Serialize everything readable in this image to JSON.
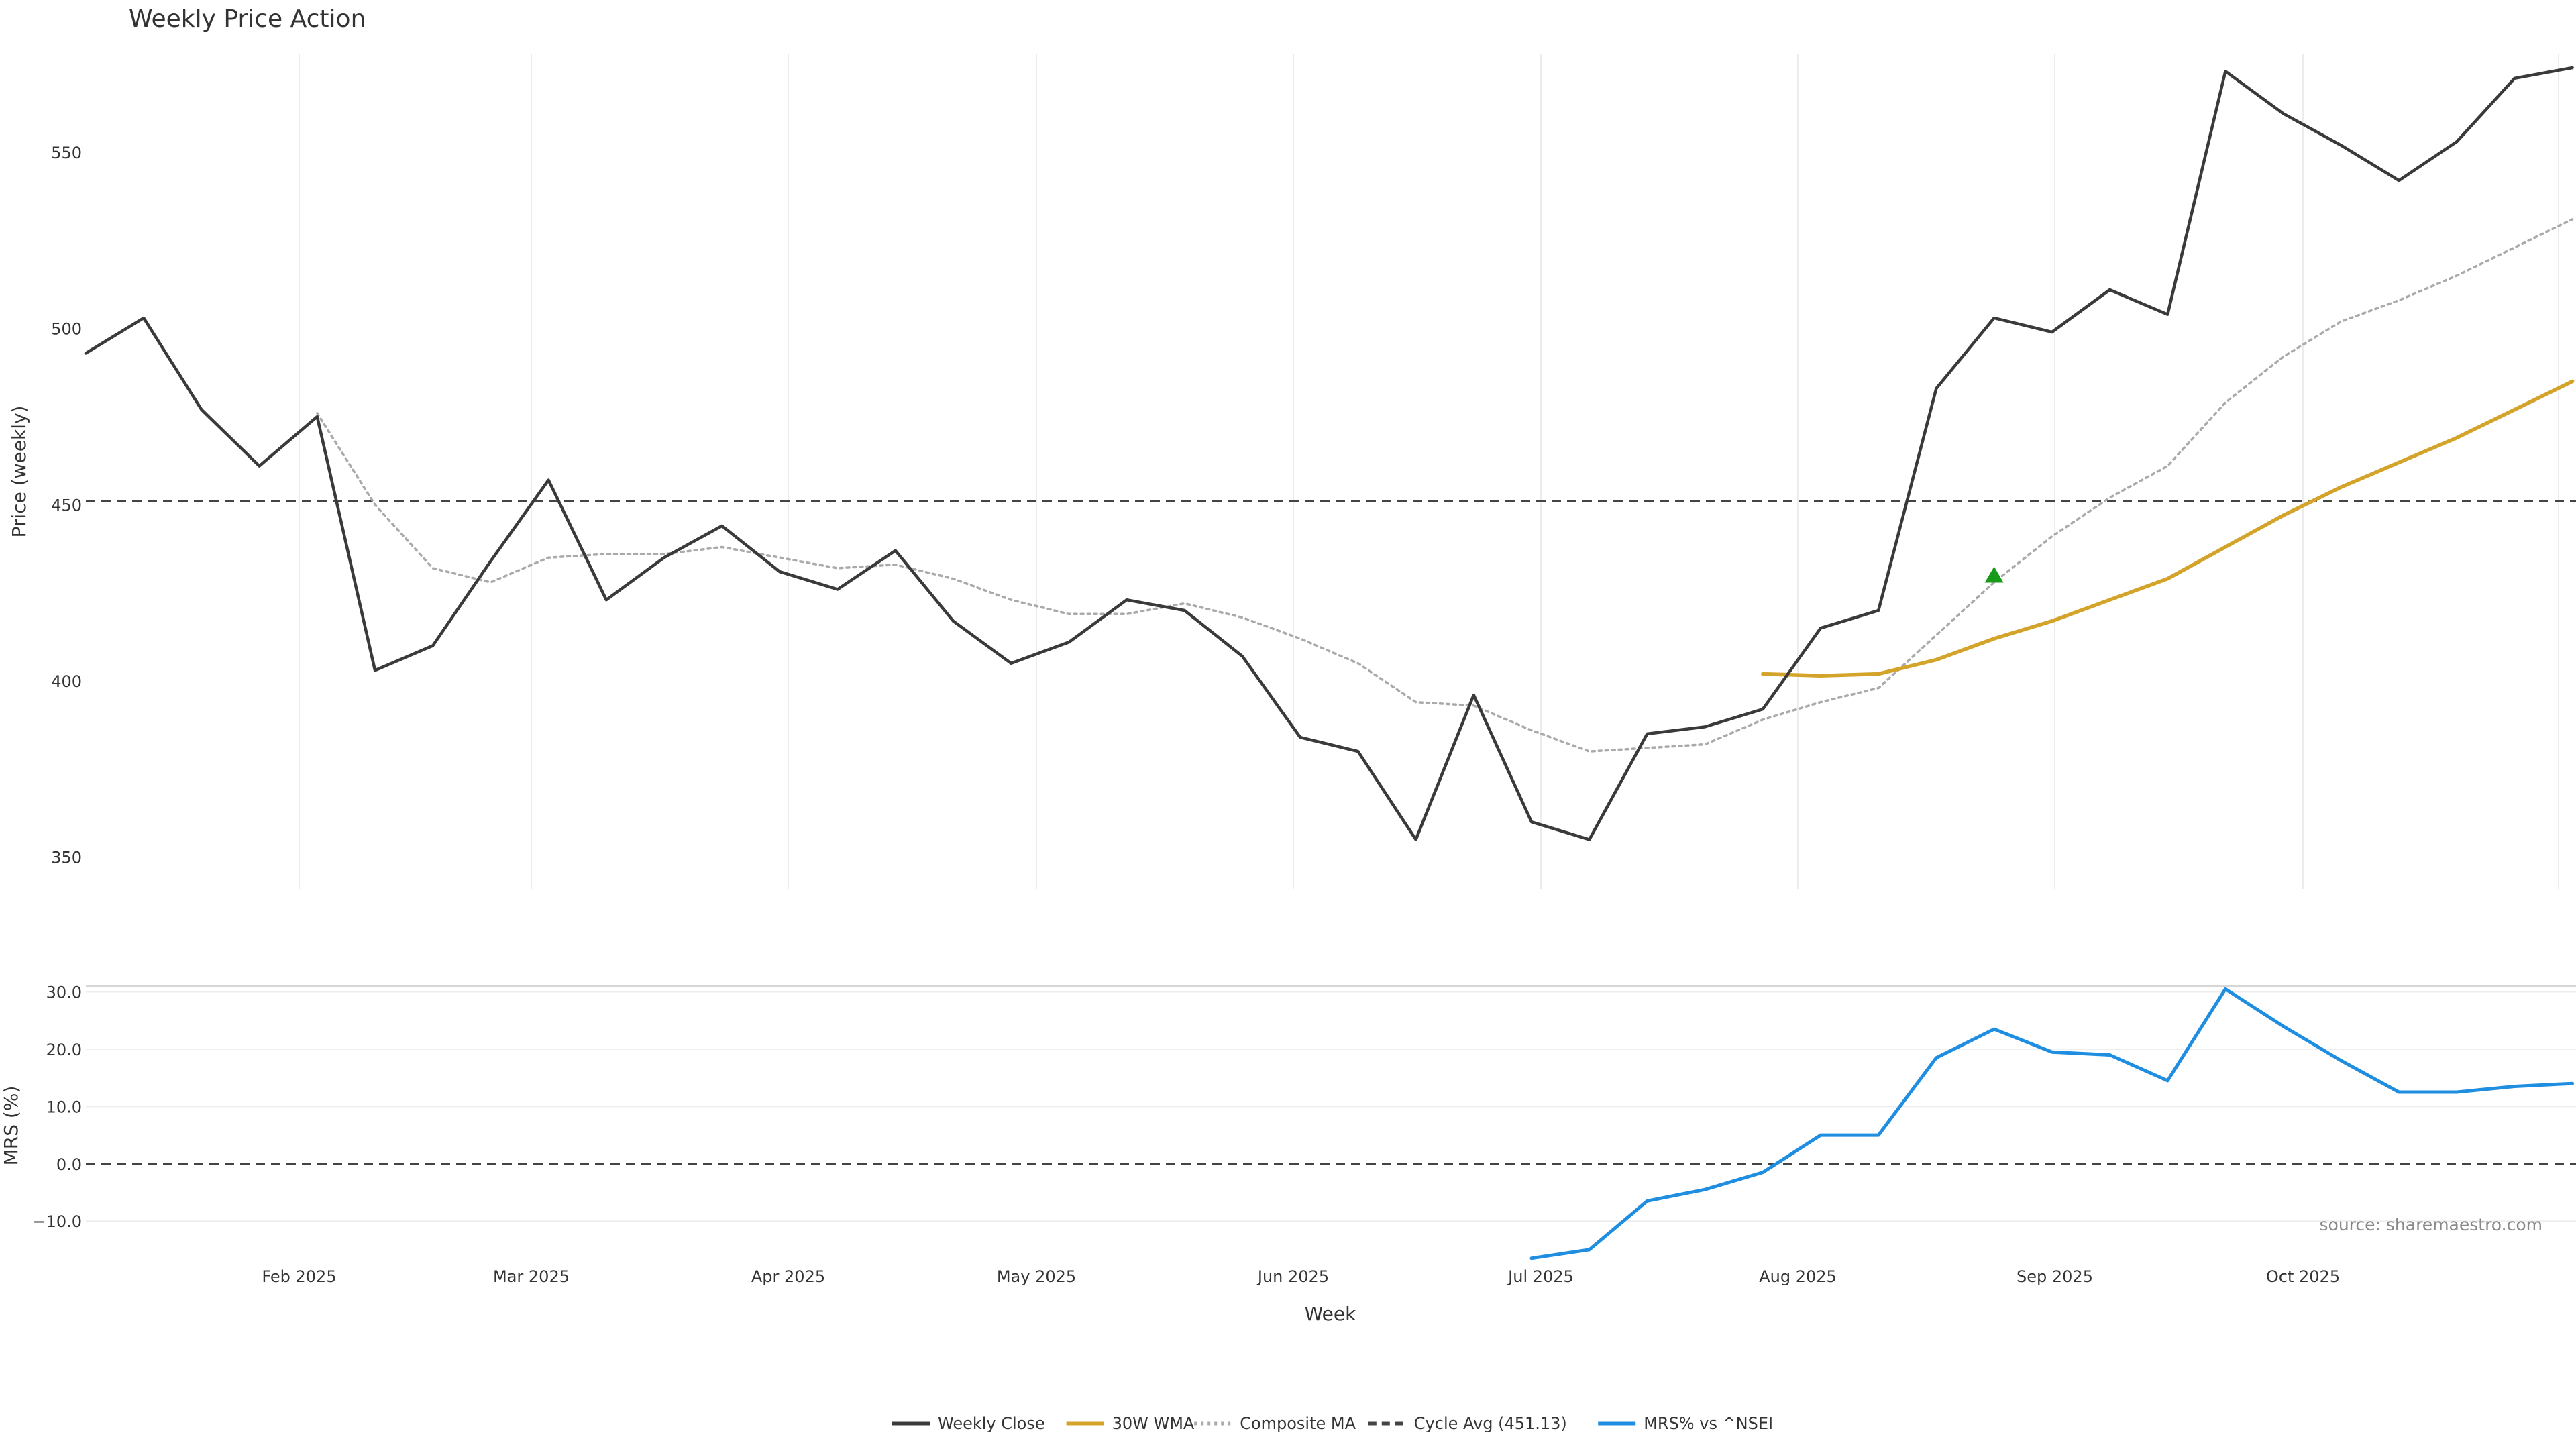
{
  "chart_data": {
    "type": "line",
    "title": "Weekly Price Action",
    "source": "source: sharemaestro.com",
    "xlabel": "Week",
    "x_ticks": [
      "Feb 2025",
      "Mar 2025",
      "Apr 2025",
      "May 2025",
      "Jun 2025",
      "Jul 2025",
      "Aug 2025",
      "Sep 2025",
      "Oct 2025"
    ],
    "price_panel": {
      "ylabel": "Price (weekly)",
      "ylim": [
        341,
        578
      ],
      "y_ticks": [
        350,
        400,
        450,
        500,
        550
      ],
      "series": [
        {
          "name": "Weekly Close",
          "color": "#3a3a3a",
          "style": "solid",
          "values": [
            493,
            503,
            477,
            461,
            475,
            403,
            410,
            434,
            457,
            423,
            435,
            444,
            431,
            426,
            437,
            417,
            405,
            411,
            423,
            420,
            407,
            384,
            380,
            355,
            396,
            360,
            355,
            385,
            387,
            392,
            415,
            420,
            483,
            503,
            499,
            511,
            504,
            573,
            561,
            552,
            542,
            553,
            571,
            574
          ]
        },
        {
          "name": "30W WMA",
          "color": "#d4a42a",
          "style": "solid",
          "start_index": 29,
          "values": [
            402,
            401.5,
            402,
            406,
            412,
            417,
            423,
            429,
            438,
            447,
            455,
            462,
            469,
            477,
            485
          ]
        },
        {
          "name": "Composite MA",
          "color": "#aaaaaa",
          "style": "dotted",
          "start_index": 4,
          "values": [
            476,
            450,
            432,
            428,
            435,
            436,
            436,
            438,
            435,
            432,
            433,
            429,
            423,
            419,
            419,
            422,
            418,
            412,
            405,
            394,
            393,
            386,
            380,
            381,
            382,
            389,
            394,
            398,
            413,
            428,
            441,
            452,
            461,
            479,
            492,
            502,
            508,
            515,
            523,
            531
          ]
        }
      ],
      "reference_line": {
        "name": "Cycle Avg (451.13)",
        "value": 451.13,
        "color": "#444444",
        "style": "dashed"
      },
      "marker": {
        "shape": "triangle-up",
        "index": 33,
        "value": 430,
        "color": "#1a9a1a"
      }
    },
    "mrs_panel": {
      "ylabel": "MRS (%)",
      "ylim": [
        -17,
        31
      ],
      "y_ticks": [
        30.0,
        20.0,
        10.0,
        0.0,
        -10.0
      ],
      "y_tick_labels": [
        "30.0",
        "20.0",
        "10.0",
        "0.0",
        "−10.0"
      ],
      "series": [
        {
          "name": "MRS% vs ^NSEI",
          "color": "#1f8ee0",
          "style": "solid",
          "start_index": 25,
          "values": [
            -16.5,
            -15,
            -6.5,
            -4.5,
            -1.5,
            5,
            5,
            18.5,
            23.5,
            19.5,
            19,
            14.5,
            30.5,
            24,
            18,
            12.5,
            12.5,
            13.5,
            14
          ]
        }
      ],
      "reference_line": {
        "value": 0,
        "color": "#444444",
        "style": "dashed"
      }
    },
    "legend": {
      "placement": "bottom-center",
      "items": [
        {
          "label": "Weekly Close",
          "color": "#3a3a3a",
          "style": "solid"
        },
        {
          "label": "30W WMA",
          "color": "#d4a42a",
          "style": "solid"
        },
        {
          "label": "Composite MA",
          "color": "#aaaaaa",
          "style": "dotted"
        },
        {
          "label": "Cycle Avg (451.13)",
          "color": "#444444",
          "style": "dashed"
        },
        {
          "label": "MRS% vs ^NSEI",
          "color": "#1f8ee0",
          "style": "solid"
        }
      ]
    }
  }
}
